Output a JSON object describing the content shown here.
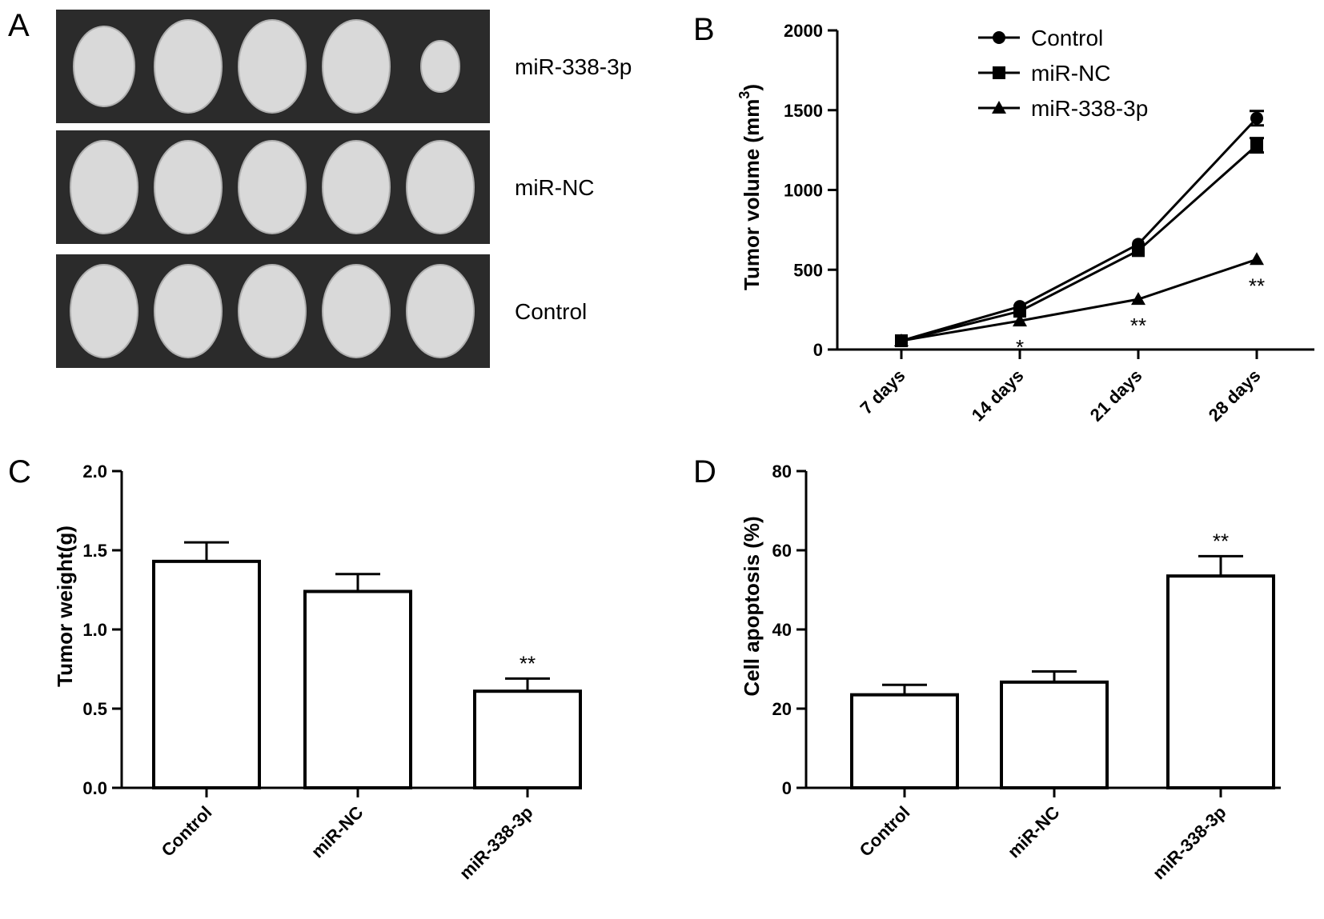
{
  "panels": {
    "a": "A",
    "b": "B",
    "c": "C",
    "d": "D"
  },
  "photo": {
    "rows": [
      {
        "label": "miR-338-3p"
      },
      {
        "label": "miR-NC"
      },
      {
        "label": "Control"
      }
    ],
    "tumors_per_row": 5
  },
  "colors": {
    "line": "#000000",
    "photo_bg": "#2b2b2b",
    "tumor": "#d9d9d9"
  },
  "chart_data": [
    {
      "id": "B",
      "type": "line",
      "ylabel_main": "Tumor volume (mm",
      "ylabel_sup": "3",
      "ylabel_close": ")",
      "categories": [
        "7 days",
        "14 days",
        "21 days",
        "28 days"
      ],
      "ylim": [
        0,
        2000
      ],
      "yticks": [
        "0",
        "500",
        "1000",
        "1500",
        "2000"
      ],
      "legend_position": "top-right",
      "series": [
        {
          "name": "Control",
          "marker": "circle",
          "values": [
            55,
            270,
            660,
            1450
          ],
          "errors": [
            0,
            0,
            0,
            45
          ]
        },
        {
          "name": "miR-NC",
          "marker": "square",
          "values": [
            55,
            240,
            620,
            1280
          ],
          "errors": [
            0,
            0,
            0,
            45
          ]
        },
        {
          "name": "miR-338-3p",
          "marker": "triangle",
          "values": [
            55,
            180,
            315,
            565
          ],
          "errors": [
            0,
            0,
            0,
            0
          ]
        }
      ],
      "annotations": [
        {
          "category": "14 days",
          "text": "*"
        },
        {
          "category": "21 days",
          "text": "**"
        },
        {
          "category": "28 days",
          "text": "**"
        }
      ]
    },
    {
      "id": "C",
      "type": "bar",
      "ylabel": "Tumor weight(g)",
      "categories": [
        "Control",
        "miR-NC",
        "miR-338-3p"
      ],
      "values": [
        1.43,
        1.24,
        0.61
      ],
      "errors": [
        0.12,
        0.11,
        0.08
      ],
      "ylim": [
        0,
        2.0
      ],
      "yticks": [
        "0.0",
        "0.5",
        "1.0",
        "1.5",
        "2.0"
      ],
      "annotations": [
        {
          "category": "miR-338-3p",
          "text": "**"
        }
      ]
    },
    {
      "id": "D",
      "type": "bar",
      "ylabel": "Cell apoptosis (%)",
      "categories": [
        "Control",
        "miR-NC",
        "miR-338-3p"
      ],
      "values": [
        23.5,
        26.7,
        53.5
      ],
      "errors": [
        2.5,
        2.7,
        5.0
      ],
      "ylim": [
        0,
        80
      ],
      "yticks": [
        "0",
        "20",
        "40",
        "60",
        "80"
      ],
      "annotations": [
        {
          "category": "miR-338-3p",
          "text": "**"
        }
      ]
    }
  ]
}
